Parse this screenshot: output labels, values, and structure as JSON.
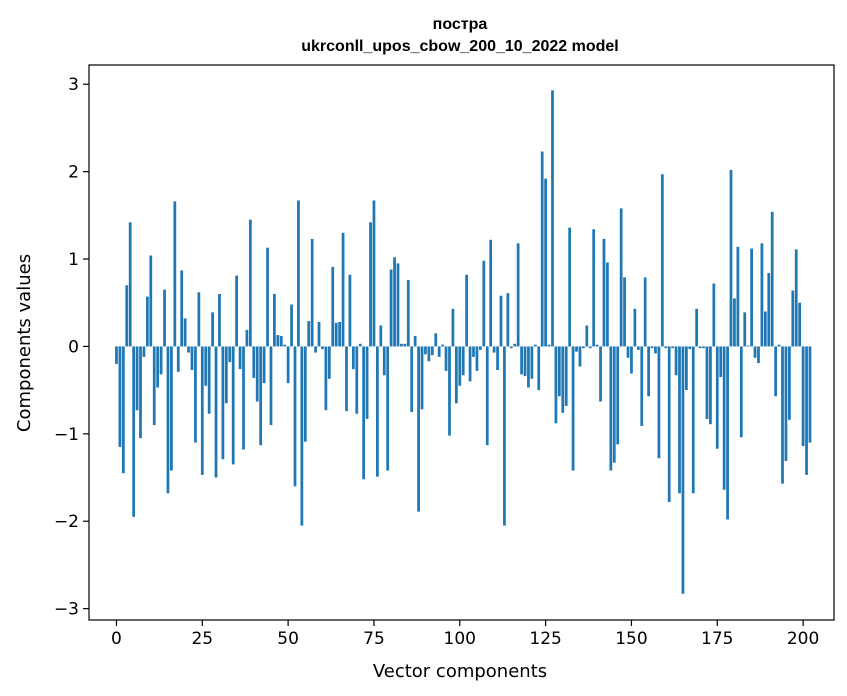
{
  "chart_data": {
    "type": "bar",
    "title": "пострa",
    "subtitle": "ukrconll_upos_cbow_200_10_2022 model",
    "xlabel": "Vector components",
    "ylabel": "Components values",
    "xlim": [
      -8,
      209
    ],
    "ylim": [
      -3.13,
      3.22
    ],
    "xticks": [
      0,
      25,
      50,
      75,
      100,
      125,
      150,
      175,
      200
    ],
    "yticks": [
      -3,
      -2,
      -1,
      0,
      1,
      2,
      3
    ],
    "grid": false,
    "legend": "none",
    "bar_color": "#1f77b4",
    "values": [
      -0.2,
      -1.15,
      -1.45,
      0.7,
      1.42,
      -1.95,
      -0.73,
      -1.05,
      -0.12,
      0.57,
      1.04,
      -0.9,
      -0.47,
      -0.32,
      0.65,
      -1.68,
      -1.42,
      1.66,
      -0.29,
      0.87,
      0.32,
      -0.07,
      -0.27,
      -1.1,
      0.62,
      -1.47,
      -0.45,
      -0.77,
      0.39,
      -1.5,
      0.6,
      -1.29,
      -0.65,
      -0.18,
      -1.35,
      0.81,
      -0.26,
      -1.18,
      0.19,
      1.45,
      -0.36,
      -0.63,
      -1.13,
      -0.42,
      1.13,
      -0.9,
      0.6,
      0.13,
      0.12,
      0.02,
      -0.42,
      0.48,
      -1.6,
      1.67,
      -2.05,
      -1.09,
      0.29,
      1.23,
      -0.07,
      0.28,
      -0.03,
      -0.73,
      -0.37,
      0.91,
      0.27,
      0.28,
      1.3,
      -0.74,
      0.82,
      -0.26,
      -0.77,
      0.03,
      -1.52,
      -0.83,
      1.42,
      1.67,
      -1.49,
      0.24,
      -0.33,
      -1.42,
      0.88,
      1.02,
      0.95,
      0.03,
      0.03,
      0.76,
      -0.75,
      0.12,
      -1.89,
      -0.72,
      -0.09,
      -0.17,
      -0.1,
      0.15,
      -0.12,
      0.02,
      -0.28,
      -1.02,
      0.43,
      -0.65,
      -0.45,
      -0.33,
      0.82,
      -0.4,
      -0.12,
      -0.28,
      -0.04,
      0.98,
      -1.13,
      1.22,
      -0.07,
      -0.27,
      0.58,
      -2.05,
      0.61,
      -0.02,
      0.03,
      1.18,
      -0.32,
      -0.34,
      -0.47,
      -0.37,
      0.02,
      -0.5,
      2.23,
      1.92,
      0.02,
      2.93,
      -0.88,
      -0.57,
      -0.76,
      -0.68,
      1.36,
      -1.42,
      -0.06,
      -0.23,
      -0.02,
      0.24,
      -0.02,
      1.34,
      0.02,
      -0.63,
      1.23,
      0.96,
      -1.42,
      -1.33,
      -1.12,
      1.58,
      0.79,
      -0.13,
      -0.31,
      0.43,
      -0.04,
      -0.91,
      0.79,
      -0.57,
      -0.02,
      -0.08,
      -1.28,
      1.97,
      -0.02,
      -1.78,
      -0.02,
      -0.33,
      -1.68,
      -2.83,
      -0.5,
      -0.03,
      -1.68,
      0.43,
      -0.02,
      -0.02,
      -0.83,
      -0.89,
      0.72,
      -1.17,
      -0.35,
      -1.64,
      -1.98,
      2.02,
      0.55,
      1.14,
      -1.04,
      0.39,
      0.01,
      1.12,
      -0.13,
      -0.19,
      1.18,
      0.4,
      0.84,
      1.54,
      -0.57,
      0.02,
      -1.57,
      -1.31,
      -0.84,
      0.64,
      1.11,
      0.5,
      -1.14,
      -1.47,
      -1.1
    ]
  }
}
